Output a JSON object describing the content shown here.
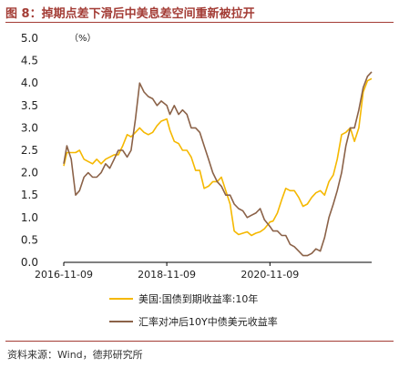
{
  "figure": {
    "title": "图 8：掉期点差下滑后中美息差空间重新被拉开",
    "source": "资料来源：Wind，德邦研究所"
  },
  "chart_data": {
    "type": "line",
    "unit_label": "（%）",
    "ylim": [
      0,
      5
    ],
    "yticks": [
      0.0,
      0.5,
      1.0,
      1.5,
      2.0,
      2.5,
      3.0,
      3.5,
      4.0,
      4.5,
      5.0
    ],
    "ytick_labels": [
      "0.0",
      "0.5",
      "1.0",
      "1.5",
      "2.0",
      "2.5",
      "3.0",
      "3.5",
      "4.0",
      "4.5",
      "5.0"
    ],
    "xlim": [
      "2016-11-09",
      "2022-10-31"
    ],
    "xticks": [
      "2016-11-09",
      "2018-11-09",
      "2020-11-09"
    ],
    "grid": false,
    "legend_position": "bottom",
    "series": [
      {
        "name": "美国:国债到期收益率:10年",
        "color": "#f5b800",
        "x": [
          "2016-11-09",
          "2016-12-01",
          "2017-01-01",
          "2017-02-01",
          "2017-03-01",
          "2017-04-01",
          "2017-05-01",
          "2017-06-01",
          "2017-07-01",
          "2017-08-01",
          "2017-09-01",
          "2017-10-01",
          "2017-11-01",
          "2017-12-01",
          "2018-01-01",
          "2018-02-01",
          "2018-03-01",
          "2018-04-01",
          "2018-05-01",
          "2018-06-01",
          "2018-07-01",
          "2018-08-01",
          "2018-09-01",
          "2018-10-01",
          "2018-11-09",
          "2018-12-01",
          "2019-01-01",
          "2019-02-01",
          "2019-03-01",
          "2019-04-01",
          "2019-05-01",
          "2019-06-01",
          "2019-07-01",
          "2019-08-01",
          "2019-09-01",
          "2019-10-01",
          "2019-11-01",
          "2019-12-01",
          "2020-01-01",
          "2020-02-01",
          "2020-03-01",
          "2020-04-01",
          "2020-05-01",
          "2020-06-01",
          "2020-07-01",
          "2020-08-01",
          "2020-09-01",
          "2020-10-01",
          "2020-11-09",
          "2020-12-01",
          "2021-01-01",
          "2021-02-01",
          "2021-03-01",
          "2021-04-01",
          "2021-05-01",
          "2021-06-01",
          "2021-07-01",
          "2021-08-01",
          "2021-09-01",
          "2021-10-01",
          "2021-11-01",
          "2021-12-01",
          "2022-01-01",
          "2022-02-01",
          "2022-03-01",
          "2022-04-01",
          "2022-05-01",
          "2022-06-01",
          "2022-07-01",
          "2022-08-01",
          "2022-09-01",
          "2022-10-01",
          "2022-10-31"
        ],
        "values": [
          2.15,
          2.45,
          2.45,
          2.45,
          2.5,
          2.3,
          2.25,
          2.2,
          2.3,
          2.2,
          2.3,
          2.35,
          2.4,
          2.4,
          2.6,
          2.85,
          2.8,
          2.9,
          3.0,
          2.9,
          2.85,
          2.9,
          3.05,
          3.15,
          3.2,
          2.95,
          2.7,
          2.65,
          2.5,
          2.5,
          2.35,
          2.05,
          2.05,
          1.65,
          1.7,
          1.8,
          1.8,
          1.9,
          1.6,
          1.3,
          0.7,
          0.62,
          0.65,
          0.68,
          0.6,
          0.65,
          0.68,
          0.75,
          0.9,
          0.92,
          1.1,
          1.4,
          1.65,
          1.6,
          1.6,
          1.45,
          1.25,
          1.3,
          1.45,
          1.55,
          1.6,
          1.5,
          1.8,
          1.95,
          2.3,
          2.85,
          2.9,
          3.0,
          2.7,
          3.0,
          3.8,
          4.05,
          4.1
        ]
      },
      {
        "name": "汇率对冲后10Y中债美元收益率",
        "color": "#8b6248",
        "x": [
          "2016-11-09",
          "2016-12-01",
          "2017-01-01",
          "2017-02-01",
          "2017-03-01",
          "2017-04-01",
          "2017-05-01",
          "2017-06-01",
          "2017-07-01",
          "2017-08-01",
          "2017-09-01",
          "2017-10-01",
          "2017-11-01",
          "2017-12-01",
          "2018-01-01",
          "2018-02-01",
          "2018-03-01",
          "2018-04-01",
          "2018-05-01",
          "2018-06-01",
          "2018-07-01",
          "2018-08-01",
          "2018-09-01",
          "2018-10-01",
          "2018-11-09",
          "2018-12-01",
          "2019-01-01",
          "2019-02-01",
          "2019-03-01",
          "2019-04-01",
          "2019-05-01",
          "2019-06-01",
          "2019-07-01",
          "2019-08-01",
          "2019-09-01",
          "2019-10-01",
          "2019-11-01",
          "2019-12-01",
          "2020-01-01",
          "2020-02-01",
          "2020-03-01",
          "2020-04-01",
          "2020-05-01",
          "2020-06-01",
          "2020-07-01",
          "2020-08-01",
          "2020-09-01",
          "2020-10-01",
          "2020-11-09",
          "2020-12-01",
          "2021-01-01",
          "2021-02-01",
          "2021-03-01",
          "2021-04-01",
          "2021-05-01",
          "2021-06-01",
          "2021-07-01",
          "2021-08-01",
          "2021-09-01",
          "2021-10-01",
          "2021-11-01",
          "2021-12-01",
          "2022-01-01",
          "2022-02-01",
          "2022-03-01",
          "2022-04-01",
          "2022-05-01",
          "2022-06-01",
          "2022-07-01",
          "2022-08-01",
          "2022-09-01",
          "2022-10-01",
          "2022-10-31"
        ],
        "values": [
          2.2,
          2.6,
          2.3,
          1.5,
          1.6,
          1.9,
          2.0,
          1.9,
          1.9,
          2.0,
          2.2,
          2.1,
          2.3,
          2.5,
          2.5,
          2.35,
          2.5,
          3.2,
          4.0,
          3.8,
          3.7,
          3.65,
          3.5,
          3.6,
          3.5,
          3.3,
          3.5,
          3.3,
          3.4,
          3.3,
          3.0,
          3.0,
          2.9,
          2.6,
          2.3,
          2.0,
          1.8,
          1.7,
          1.5,
          1.5,
          1.3,
          1.2,
          1.15,
          1.0,
          1.05,
          1.1,
          1.2,
          0.95,
          0.8,
          0.7,
          0.7,
          0.6,
          0.6,
          0.4,
          0.35,
          0.25,
          0.15,
          0.15,
          0.2,
          0.3,
          0.25,
          0.55,
          1.0,
          1.3,
          1.6,
          2.0,
          2.6,
          3.0,
          3.0,
          3.4,
          3.9,
          4.15,
          4.25
        ]
      }
    ]
  }
}
